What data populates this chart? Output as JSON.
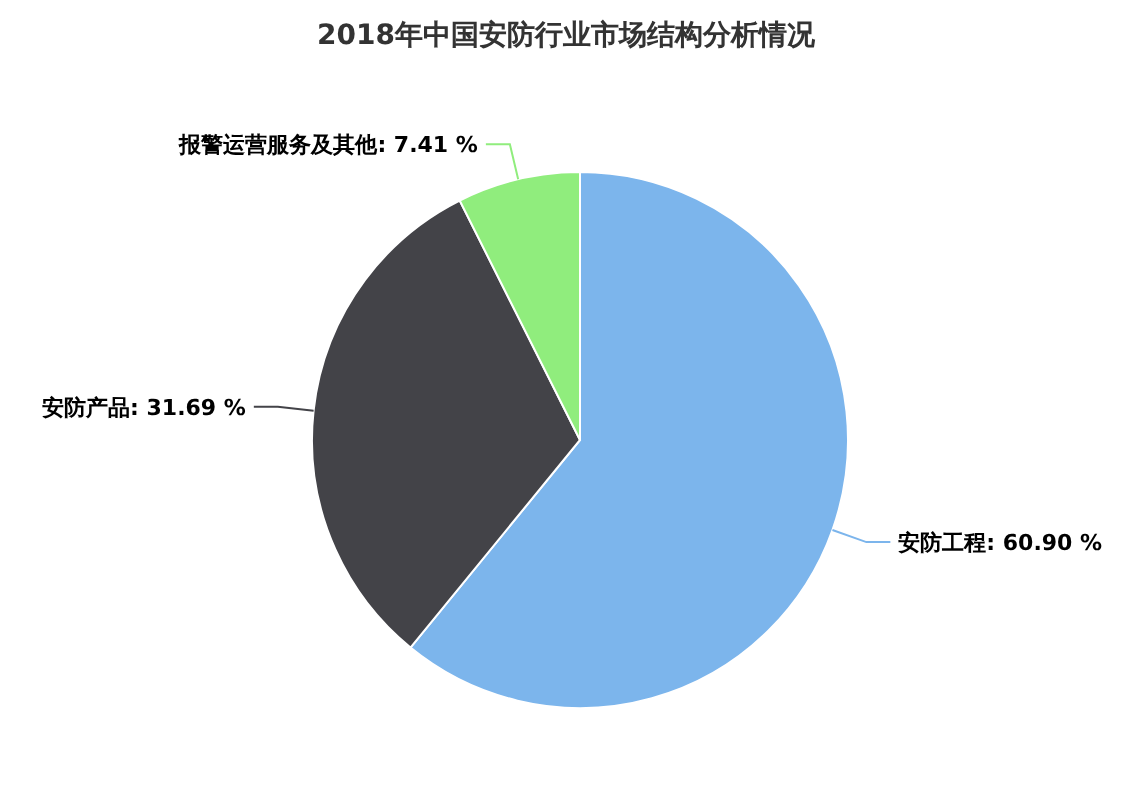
{
  "chart_data": {
    "type": "pie",
    "title": "2018年中国安防行业市场结构分析情况",
    "categories": [
      "安防工程",
      "安防产品",
      "报警运营服务及其他"
    ],
    "values": [
      60.9,
      31.69,
      7.41
    ],
    "colors": [
      "#7cb5ec",
      "#434348",
      "#90ed7d"
    ],
    "value_labels": [
      ": 60.90 %",
      ": 31.69 %",
      ": 7.41 %"
    ]
  }
}
